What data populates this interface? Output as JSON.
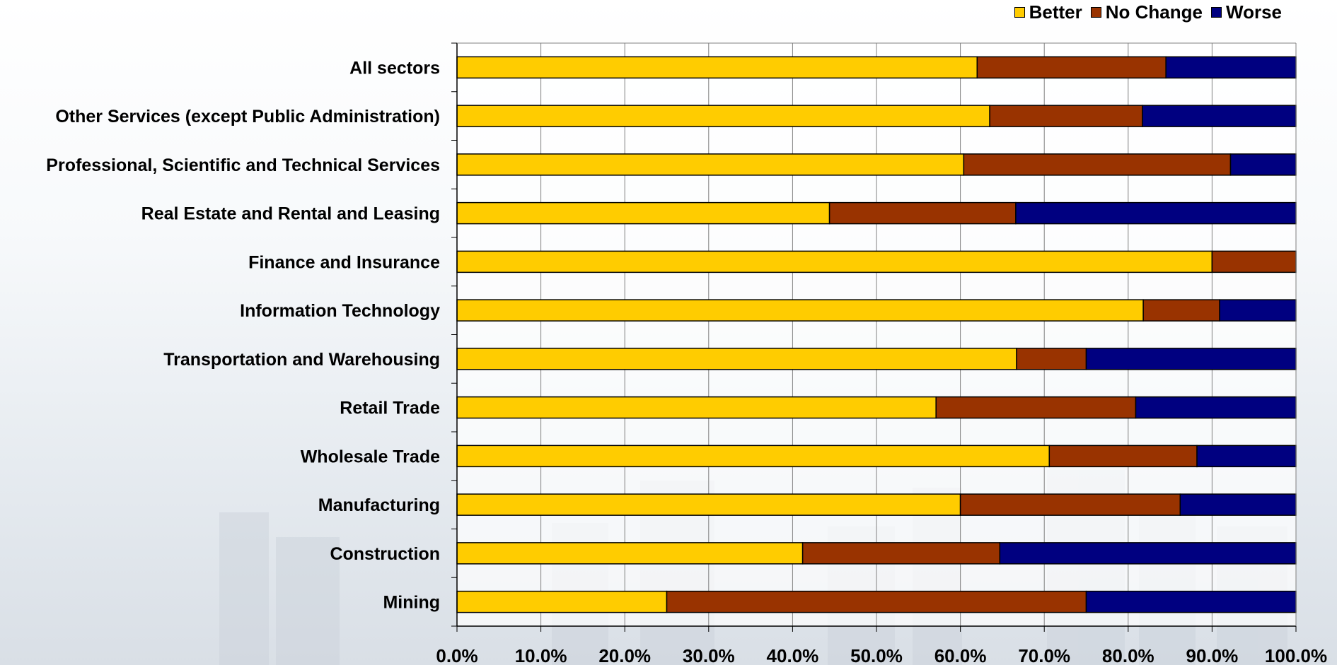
{
  "chart_data": {
    "type": "bar",
    "orientation": "horizontal",
    "stacked": true,
    "title": "",
    "xlabel": "",
    "ylabel": "",
    "xlim": [
      0,
      100
    ],
    "x_ticks": [
      "0.0%",
      "10.0%",
      "20.0%",
      "30.0%",
      "40.0%",
      "50.0%",
      "60.0%",
      "70.0%",
      "80.0%",
      "90.0%",
      "100.0%"
    ],
    "grid": true,
    "legend_position": "top-right",
    "categories": [
      "All sectors",
      "Other Services (except Public Administration)",
      "Professional, Scientific and Technical Services",
      "Real Estate and Rental and Leasing",
      "Finance and Insurance",
      "Information Technology",
      "Transportation and Warehousing",
      "Retail Trade",
      "Wholesale Trade",
      "Manufacturing",
      "Construction",
      "Mining"
    ],
    "series": [
      {
        "name": "Better",
        "color": "#FFCC00",
        "values": [
          62.0,
          63.5,
          60.4,
          44.4,
          90.0,
          81.8,
          66.7,
          57.1,
          70.6,
          60.0,
          41.2,
          25.0
        ]
      },
      {
        "name": "No Change",
        "color": "#993300",
        "values": [
          22.5,
          18.2,
          31.8,
          22.2,
          10.0,
          9.1,
          8.3,
          23.8,
          17.6,
          26.2,
          23.5,
          50.0
        ]
      },
      {
        "name": "Worse",
        "color": "#000080",
        "values": [
          15.5,
          18.3,
          7.8,
          33.4,
          0.0,
          9.1,
          25.0,
          19.1,
          11.8,
          13.8,
          35.3,
          25.0
        ]
      }
    ]
  }
}
